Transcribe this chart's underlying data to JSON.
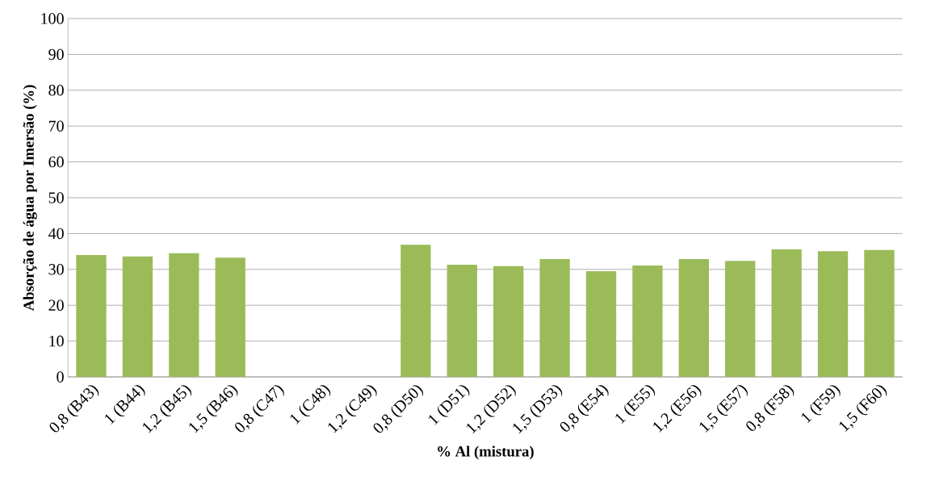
{
  "chart_data": {
    "type": "bar",
    "xlabel": "% Al (mistura)",
    "ylabel": "Absorção de água por Imersão (%)",
    "categories": [
      "0,8 (B43)",
      "1 (B44)",
      "1,2 (B45)",
      "1,5 (B46)",
      "0,8 (C47)",
      "1 (C48)",
      "1,2 (C49)",
      "0,8 (D50)",
      "1 (D51)",
      "1,2 (D52)",
      "1,5 (D53)",
      "0,8 (E54)",
      "1 (E55)",
      "1,2 (E56)",
      "1,5 (E57)",
      "0,8 (F58)",
      "1 (F59)",
      "1,5 (F60)"
    ],
    "values": [
      34.0,
      33.6,
      34.5,
      33.3,
      null,
      null,
      null,
      36.9,
      31.3,
      30.9,
      32.9,
      29.5,
      31.1,
      32.9,
      32.4,
      35.6,
      35.1,
      35.4
    ],
    "color": "#9bbb59",
    "ylim": [
      0,
      100
    ],
    "yticks": [
      0,
      10,
      20,
      30,
      40,
      50,
      60,
      70,
      80,
      90,
      100
    ],
    "grid": "y"
  }
}
